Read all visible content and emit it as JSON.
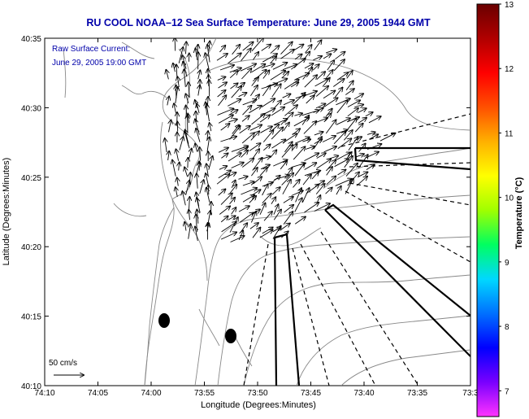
{
  "chart_data": {
    "type": "vector-field",
    "title": "RU COOL  NOAA–12  Sea Surface Temperature:  June 29, 2005 1944 GMT",
    "subtitle_lines": [
      "Raw Surface Current:",
      "June 29, 2005 19:00 GMT"
    ],
    "xlabel": "Longitude (Degrees:Minutes)",
    "ylabel": "Latitude (Degrees:Minutes)",
    "x_ticks": [
      "74:10",
      "74:05",
      "74:00",
      "73:55",
      "73:50",
      "73:45",
      "73:40",
      "73:35",
      "73:3"
    ],
    "y_ticks": [
      "40:35",
      "40:30",
      "40:25",
      "40:20",
      "40:15",
      "40:10"
    ],
    "xlim": [
      -74.1667,
      -73.5
    ],
    "ylim": [
      40.1667,
      40.5833
    ],
    "scale_label": "50 cm/s",
    "colorbar": {
      "label": "Temperature (°C)",
      "ticks": [
        "13",
        "12",
        "11",
        "10",
        "9",
        "8",
        "7"
      ],
      "range": [
        6.6,
        13
      ],
      "colors": [
        "#ff33ff",
        "#7a00ff",
        "#0000ff",
        "#0070ff",
        "#00d8ff",
        "#00ff60",
        "#a0ff00",
        "#ffff00",
        "#ffb000",
        "#ff5000",
        "#ff0000",
        "#b00000",
        "#6a0000"
      ]
    },
    "colors": {
      "title": "#0000aa",
      "annotation": "#0000aa",
      "arrows": "#000000",
      "contours": "#888888"
    },
    "grid": false
  }
}
